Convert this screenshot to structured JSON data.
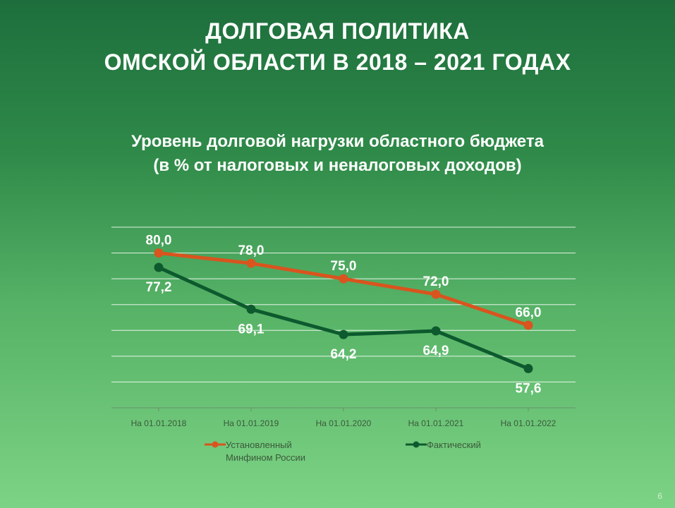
{
  "slide": {
    "title_line1": "ДОЛГОВАЯ ПОЛИТИКА",
    "title_line2": "ОМСКОЙ ОБЛАСТИ В 2018 – 2021 ГОДАХ",
    "subtitle_line1": "Уровень долговой нагрузки областного бюджета",
    "subtitle_line2": "(в % от налоговых и неналоговых доходов)",
    "page_number": "6"
  },
  "colors": {
    "established": "#d9541e",
    "actual": "#0d5a2e",
    "gridline": "#ffffff",
    "tick_text": "#3a5a3a"
  },
  "chart_data": {
    "type": "line",
    "categories": [
      "На 01.01.2018",
      "На 01.01.2019",
      "На 01.01.2020",
      "На 01.01.2021",
      "На 01.01.2022"
    ],
    "series": [
      {
        "name": "Установленный Минфином России",
        "key": "established",
        "values": [
          80.0,
          78.0,
          75.0,
          72.0,
          66.0
        ],
        "labels": [
          "80,0",
          "78,0",
          "75,0",
          "72,0",
          "66,0"
        ],
        "label_side": "above"
      },
      {
        "name": "Фактический",
        "key": "actual",
        "values": [
          77.2,
          69.1,
          64.2,
          64.9,
          57.6
        ],
        "labels": [
          "77,2",
          "69,1",
          "64,2",
          "64,9",
          "57,6"
        ],
        "label_side": "below"
      }
    ],
    "ylim": [
      50,
      85
    ],
    "grid": true,
    "legend": "bottom"
  }
}
